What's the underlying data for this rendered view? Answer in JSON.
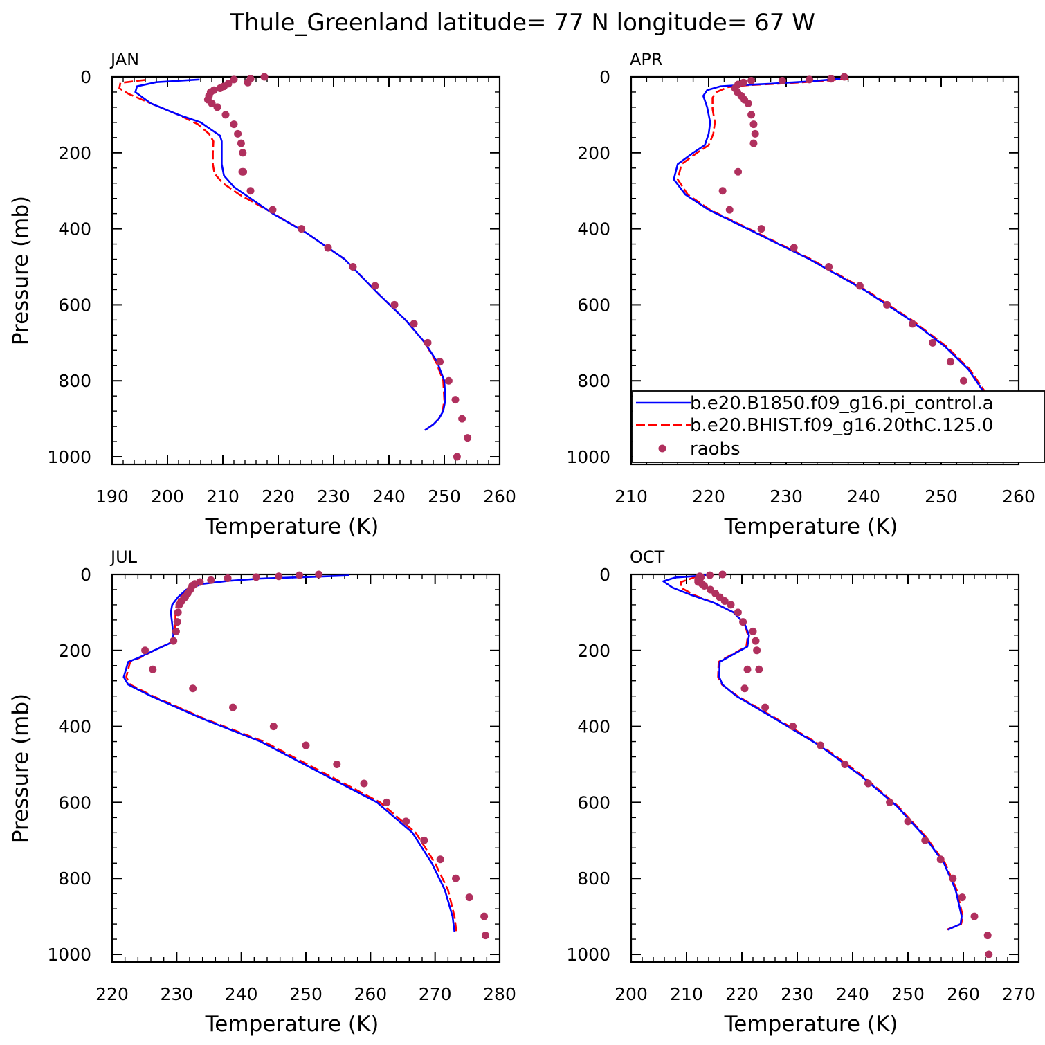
{
  "title": "Thule_Greenland  latitude= 77 N longitude= 67 W",
  "colors": {
    "control": "#0000ff",
    "hist": "#ff0000",
    "obs": "#b0305e"
  },
  "legend": {
    "entries": [
      {
        "label": "b.e20.B1850.f09_g16.pi_control.a",
        "style": "solid-blue-line"
      },
      {
        "label": "b.e20.BHIST.f09_g16.20thC.125.0",
        "style": "dashed-red-line"
      },
      {
        "label": "raobs",
        "style": "purple-dots"
      }
    ],
    "placement": "inside APR panel, lower right"
  },
  "chart_data": [
    {
      "type": "line",
      "month": "JAN",
      "xlabel": "Temperature (K)",
      "ylabel": "Pressure (mb)",
      "xlim": [
        190,
        260
      ],
      "ylim": [
        0,
        1020
      ],
      "y_inverted": true,
      "xticks": [
        190,
        200,
        210,
        220,
        230,
        240,
        250,
        260
      ],
      "yticks": [
        0,
        200,
        400,
        600,
        800,
        1000
      ],
      "series": [
        {
          "key": "control",
          "style": "solid",
          "x": [
            205.8,
            198,
            194.5,
            194.2,
            197,
            202,
            206,
            208,
            209.5,
            209.8,
            209.8,
            209.8,
            210.2,
            212,
            215,
            219,
            225,
            232,
            238,
            243,
            246.5,
            248.7,
            250,
            250.2,
            249.8,
            249,
            248,
            246.5
          ],
          "y": [
            7,
            14,
            25,
            40,
            70,
            100,
            120,
            140,
            155,
            170,
            200,
            230,
            260,
            290,
            320,
            360,
            410,
            480,
            570,
            640,
            700,
            750,
            800,
            850,
            880,
            900,
            915,
            930
          ]
        },
        {
          "key": "hist",
          "style": "dashed",
          "x": [
            196,
            191.5,
            191.3,
            193,
            197,
            202,
            205.5,
            207.5,
            208.3,
            208.2,
            208.2,
            208.5,
            210,
            213,
            218,
            225,
            232,
            238,
            243,
            246.5,
            248.5,
            249.8,
            250,
            249.7,
            249,
            248,
            246.5
          ],
          "y": [
            8,
            16,
            30,
            45,
            70,
            100,
            125,
            150,
            170,
            200,
            230,
            255,
            280,
            310,
            350,
            410,
            480,
            570,
            640,
            700,
            750,
            800,
            850,
            880,
            900,
            915,
            930
          ]
        }
      ],
      "obs": {
        "x": [
          217.5,
          215,
          212,
          214.5,
          211,
          210.2,
          209.5,
          208.4,
          207.8,
          207.5,
          207.3,
          208,
          209,
          210.5,
          212,
          212.7,
          213.3,
          213.6,
          213.5,
          213.7,
          215,
          219,
          224.2,
          229,
          233.5,
          237.5,
          241,
          244.5,
          247,
          249.2,
          250.8,
          252,
          252.3,
          253.2,
          254.2
        ],
        "y": [
          0,
          5,
          7,
          15,
          18,
          25,
          30,
          35,
          40,
          50,
          60,
          70,
          80,
          100,
          125,
          150,
          175,
          200,
          250,
          250,
          300,
          350,
          400,
          450,
          500,
          550,
          600,
          650,
          700,
          750,
          800,
          850,
          1000,
          900,
          950
        ]
      }
    },
    {
      "type": "line",
      "month": "APR",
      "xlabel": "Temperature (K)",
      "ylabel": "",
      "xlim": [
        210,
        260
      ],
      "ylim": [
        0,
        1020
      ],
      "y_inverted": true,
      "xticks": [
        210,
        220,
        230,
        240,
        250,
        260
      ],
      "yticks": [
        0,
        200,
        400,
        600,
        800,
        1000
      ],
      "series": [
        {
          "key": "control",
          "style": "solid",
          "x": [
            237,
            233,
            228,
            224,
            221.5,
            219.8,
            219.3,
            219.8,
            220.2,
            220,
            219.5,
            218,
            216,
            215.5,
            217,
            220,
            226,
            233,
            240,
            246,
            250.5,
            253.5,
            255.5,
            256.3,
            256.3,
            255.2,
            254.5
          ],
          "y": [
            5,
            12,
            18,
            22,
            25,
            35,
            50,
            80,
            120,
            150,
            180,
            200,
            230,
            270,
            310,
            350,
            410,
            480,
            560,
            640,
            710,
            770,
            830,
            880,
            920,
            935,
            945
          ]
        },
        {
          "key": "hist",
          "style": "dashed",
          "x": [
            238,
            234,
            229,
            225,
            222.5,
            221,
            220.5,
            220.5,
            220.8,
            220.6,
            220,
            218.5,
            216.5,
            216,
            217.3,
            220.2,
            226.2,
            233.2,
            240.2,
            246.2,
            250.7,
            253.7,
            255.7,
            256.5,
            256.4,
            255.4,
            254.6
          ],
          "y": [
            5,
            12,
            18,
            22,
            27,
            40,
            55,
            85,
            120,
            150,
            180,
            200,
            230,
            270,
            310,
            350,
            410,
            480,
            560,
            640,
            710,
            770,
            830,
            880,
            920,
            935,
            945
          ]
        }
      ],
      "obs": {
        "x": [
          237.5,
          235.8,
          233,
          229.5,
          225.5,
          224.5,
          223.8,
          223.4,
          223.7,
          224.2,
          224.6,
          225.1,
          225.5,
          225.8,
          226,
          225.8,
          223.8,
          221.8,
          222.7,
          226.8,
          231,
          235.5,
          239.5,
          243,
          246.3,
          248.9,
          251.2,
          252.9,
          254.2,
          256,
          257,
          257
        ],
        "y": [
          0,
          5,
          7,
          10,
          10,
          15,
          20,
          30,
          40,
          50,
          60,
          70,
          100,
          125,
          150,
          175,
          250,
          300,
          350,
          400,
          450,
          500,
          550,
          600,
          650,
          700,
          750,
          800,
          850,
          900,
          950,
          1000
        ]
      }
    },
    {
      "type": "line",
      "month": "JUL",
      "xlabel": "Temperature (K)",
      "ylabel": "Pressure (mb)",
      "xlim": [
        220,
        280
      ],
      "ylim": [
        0,
        1020
      ],
      "y_inverted": true,
      "xticks": [
        220,
        230,
        240,
        250,
        260,
        270,
        280
      ],
      "yticks": [
        0,
        200,
        400,
        600,
        800,
        1000
      ],
      "series": [
        {
          "key": "control",
          "style": "solid",
          "x": [
            256.7,
            250,
            243,
            238,
            234,
            231.5,
            230.2,
            229.3,
            229.1,
            229.3,
            229.5,
            229.1,
            226.5,
            224,
            222.5,
            221.8,
            222.5,
            226,
            234,
            243,
            252,
            261,
            266.5,
            269.5,
            271.5,
            272.7,
            273
          ],
          "y": [
            3,
            7,
            11,
            17,
            25,
            40,
            60,
            80,
            100,
            130,
            160,
            180,
            200,
            220,
            230,
            270,
            290,
            320,
            380,
            440,
            520,
            600,
            680,
            760,
            830,
            900,
            940
          ]
        },
        {
          "key": "hist",
          "style": "dashed",
          "x": [
            231.5,
            230.5,
            230,
            229.8,
            229.8,
            229.6,
            229,
            226.5,
            224.2,
            222.8,
            222.2,
            222.8,
            226.3,
            234.3,
            243.5,
            252.5,
            261.5,
            267,
            270,
            272,
            273,
            273.3
          ],
          "y": [
            40,
            60,
            80,
            100,
            130,
            160,
            180,
            200,
            220,
            230,
            270,
            290,
            320,
            380,
            440,
            520,
            600,
            680,
            760,
            830,
            900,
            940
          ]
        }
      ],
      "obs": {
        "x": [
          252,
          249,
          245.8,
          242.3,
          237.9,
          235.3,
          233.6,
          232.8,
          232.4,
          232.1,
          231.7,
          231.3,
          230.8,
          230.4,
          230.2,
          230.1,
          229.9,
          229.5,
          225.1,
          226.3,
          232.5,
          238.7,
          245,
          250,
          254.8,
          259,
          262.5,
          265.5,
          268.3,
          270.8,
          273.2,
          275.3,
          277.6,
          277.8
        ],
        "y": [
          0,
          2,
          5,
          7,
          10,
          15,
          20,
          25,
          30,
          40,
          50,
          60,
          70,
          80,
          100,
          125,
          150,
          175,
          200,
          250,
          300,
          350,
          400,
          450,
          500,
          550,
          600,
          650,
          700,
          750,
          800,
          850,
          900,
          950
        ]
      }
    },
    {
      "type": "line",
      "month": "OCT",
      "xlabel": "Temperature (K)",
      "ylabel": "",
      "xlim": [
        200,
        270
      ],
      "ylim": [
        0,
        1020
      ],
      "y_inverted": true,
      "xticks": [
        200,
        210,
        220,
        230,
        240,
        250,
        260,
        270
      ],
      "yticks": [
        0,
        200,
        400,
        600,
        800,
        1000
      ],
      "series": [
        {
          "key": "control",
          "style": "solid",
          "x": [
            214,
            208,
            205.8,
            207.5,
            211,
            215,
            218.5,
            220.5,
            221.3,
            221,
            218.5,
            216,
            215.9,
            216.5,
            219,
            226,
            234,
            241.5,
            248,
            253,
            256.5,
            258.6,
            259.7,
            259.5,
            257.2
          ],
          "y": [
            2,
            8,
            18,
            35,
            55,
            75,
            100,
            130,
            160,
            190,
            210,
            230,
            270,
            290,
            320,
            380,
            450,
            530,
            610,
            690,
            760,
            830,
            900,
            920,
            935
          ]
        },
        {
          "key": "hist",
          "style": "dashed",
          "x": [
            212,
            209,
            209,
            211.5,
            215,
            218.5,
            220.5,
            221.1,
            220.8,
            218.3,
            215.8,
            215.7,
            216.4,
            219.2,
            226.3,
            234.3,
            241.8,
            248.2,
            253.2,
            256.7,
            258.8,
            259.9,
            259.6,
            257
          ],
          "y": [
            5,
            20,
            35,
            55,
            75,
            100,
            130,
            160,
            190,
            210,
            230,
            270,
            290,
            320,
            380,
            450,
            530,
            610,
            690,
            760,
            830,
            900,
            920,
            935
          ]
        }
      ],
      "obs": {
        "x": [
          216.5,
          214.2,
          212.4,
          212.6,
          212.2,
          212.1,
          212.1,
          212.8,
          213.2,
          214.3,
          215.2,
          216,
          216.9,
          218,
          219.3,
          220.2,
          222,
          222.5,
          222.7,
          223.1,
          221,
          220.5,
          224.2,
          229.2,
          234.2,
          238.6,
          242.8,
          246.7,
          250,
          253.1,
          255.9,
          258.1,
          259.8,
          262,
          264.4,
          264.6
        ],
        "y": [
          0,
          2,
          5,
          7,
          10,
          15,
          20,
          25,
          30,
          40,
          50,
          60,
          70,
          80,
          100,
          125,
          150,
          175,
          200,
          250,
          250,
          300,
          350,
          400,
          450,
          500,
          550,
          600,
          650,
          700,
          750,
          800,
          850,
          900,
          950,
          1000
        ]
      }
    }
  ]
}
